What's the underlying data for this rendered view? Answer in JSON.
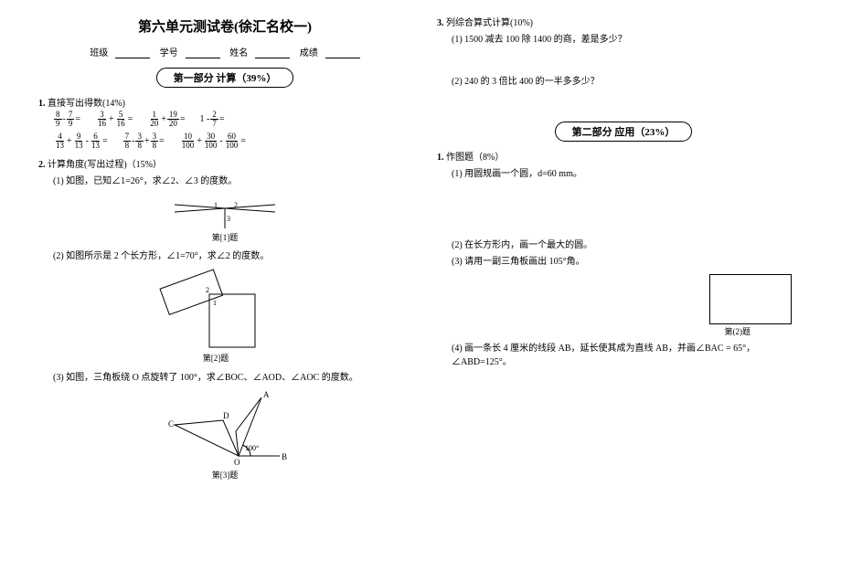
{
  "title": "第六单元测试卷(徐汇名校一)",
  "meta": {
    "l1": "班级",
    "l2": "学号",
    "l3": "姓名",
    "l4": "成绩"
  },
  "sec1": {
    "title": "第一部分  计算（39%）"
  },
  "sec2": {
    "title": "第二部分  应用（23%）"
  },
  "q1": {
    "num": "1.",
    "t": "直接写出得数(14%)",
    "r1": [
      {
        "a": "8",
        "b": "9",
        "op": "-",
        "c": "7",
        "d": "9"
      },
      {
        "a": "3",
        "b": "16",
        "op": "+",
        "c": "5",
        "d": "16"
      },
      {
        "a": "1",
        "b": "20",
        "op": "+",
        "c": "19",
        "d": "20"
      }
    ],
    "r1tail": {
      "pre": "1 -",
      "a": "2",
      "b": "7"
    },
    "r2": [
      {
        "a": "4",
        "b": "13",
        "op": "+",
        "c": "9",
        "d": "13",
        "op2": "-",
        "e": "6",
        "f": "13"
      },
      {
        "a": "7",
        "b": "8",
        "op": "-",
        "c": "3",
        "d": "8",
        "op2": "+",
        "e": "3",
        "f": "8"
      },
      {
        "a": "10",
        "b": "100",
        "op": "+",
        "c": "30",
        "d": "100",
        "op2": "-",
        "e": "60",
        "f": "100"
      }
    ]
  },
  "q2": {
    "num": "2.",
    "t": "计算角度(写出过程)（15%）",
    "s1": "(1) 如图，已知∠1=26°，求∠2、∠3 的度数。",
    "f1": "第[1]题",
    "s2": "(2) 如图所示是 2 个长方形，∠1=70°，求∠2 的度数。",
    "f2": "第[2]题",
    "s3": "(3) 如图，三角板绕 O 点旋转了 100°，求∠BOC、∠AOD、∠AOC 的度数。",
    "f3": "第[3]题",
    "angle": "100°",
    "A": "A",
    "B": "B",
    "C": "C",
    "D": "D",
    "O": "O"
  },
  "q3": {
    "num": "3.",
    "t": "列综合算式计算(10%)",
    "s1": "(1) 1500 减去 100 除 1400 的商，差是多少？",
    "s2": "(2) 240 的 3 倍比 400 的一半多多少？"
  },
  "q4": {
    "num": "1.",
    "t": "作图题（8%）",
    "s1": "(1) 用圆规画一个圆，d=60 mm。",
    "s2": "(2) 在长方形内，画一个最大的圆。",
    "s3": "(3) 请用一副三角板画出 105°角。",
    "f2": "第(2)题",
    "s4": "(4) 画一条长 4 厘米的线段 AB，延长使其成为直线 AB，并画∠BAC = 65°，∠ABD=125°。"
  }
}
